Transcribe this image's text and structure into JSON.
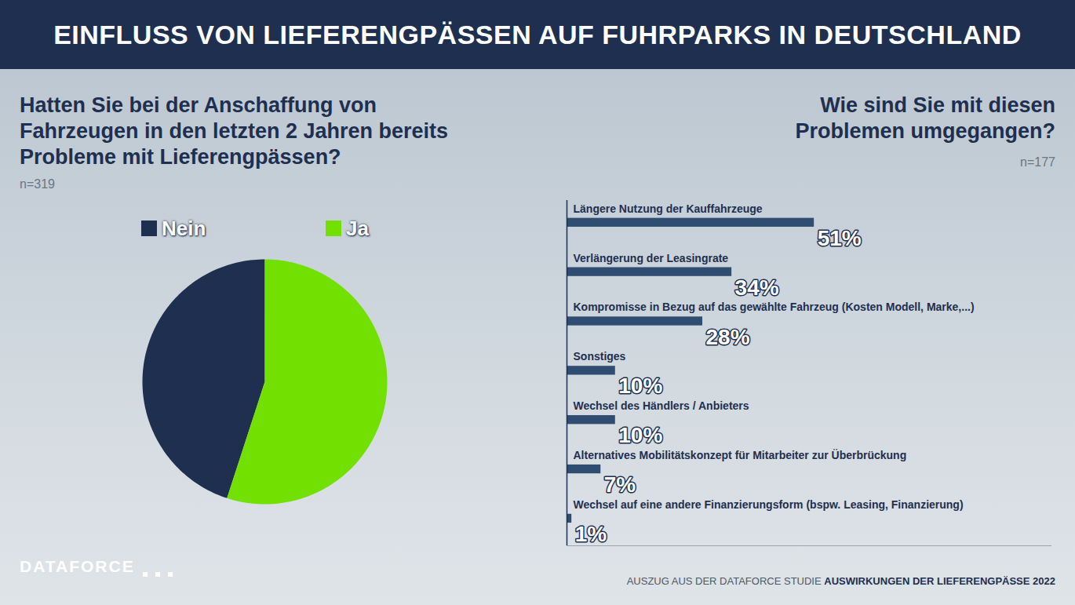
{
  "title": "EINFLUSS VON LIEFERENGPÄSSEN AUF FUHRPARKS IN DEUTSCHLAND",
  "logo": "DATAFORCE",
  "source": {
    "text": "AUSZUG AUS DER DATAFORCE STUDIE",
    "emphasis": "AUSWIRKUNGEN DER LIEFERENGPÄSSE 2022"
  },
  "chart_data": [
    {
      "type": "pie",
      "title": "Hatten Sie bei der Anschaffung von Fahrzeugen in den letzten 2 Jahren bereits Probleme mit Lieferengpässen?",
      "note": "n=319",
      "categories": [
        "Nein",
        "Ja"
      ],
      "values": [
        45,
        55
      ],
      "colors": [
        "#1f2f4f",
        "#72e000"
      ],
      "legend": "top"
    },
    {
      "type": "bar",
      "orientation": "horizontal",
      "title": "Wie sind Sie mit diesen Problemen umgegangen?",
      "note": "n=177",
      "categories": [
        "Längere Nutzung der Kauffahrzeuge",
        "Verlängerung der Leasingrate",
        "Kompromisse in Bezug auf das gewählte Fahrzeug (Kosten Modell, Marke,...)",
        "Sonstiges",
        "Wechsel des Händlers / Anbieters",
        "Alternatives Mobilitätskonzept für Mitarbeiter zur Überbrückung",
        "Wechsel auf eine andere Finanzierungsform (bspw. Leasing, Finanzierung)"
      ],
      "values": [
        51,
        34,
        28,
        10,
        10,
        7,
        1
      ],
      "value_labels": [
        "51%",
        "34%",
        "28%",
        "10%",
        "10%",
        "7%",
        "1%"
      ],
      "color": "#2e4d70",
      "xlim": [
        0,
        100
      ],
      "xticks": [],
      "tick_labels": false,
      "data_labels": true
    }
  ]
}
